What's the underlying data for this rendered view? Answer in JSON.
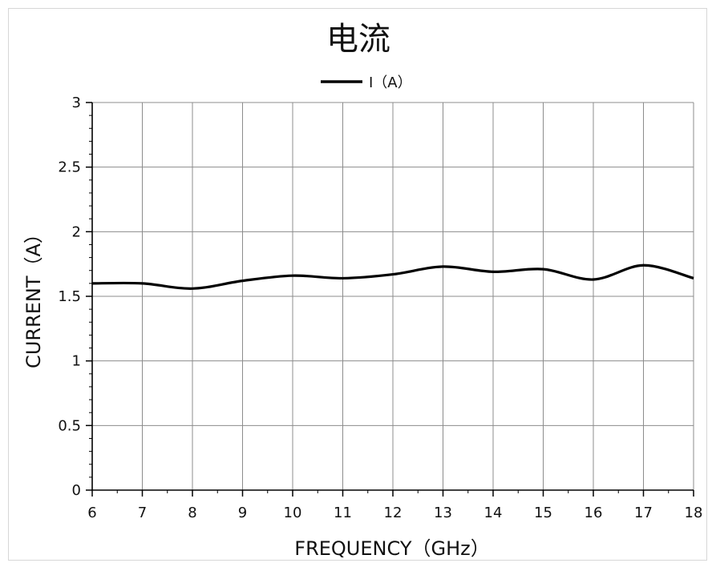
{
  "chart_data": {
    "type": "line",
    "title": "电流",
    "xlabel": "FREQUENCY（GHz）",
    "ylabel": "CURRENT（A）",
    "xlim": [
      6,
      18
    ],
    "ylim": [
      0,
      3
    ],
    "xticks": [
      "6",
      "7",
      "8",
      "9",
      "10",
      "11",
      "12",
      "13",
      "14",
      "15",
      "16",
      "17",
      "18"
    ],
    "yticks": [
      "0",
      "0.5",
      "1",
      "1.5",
      "2",
      "2.5",
      "3"
    ],
    "grid": true,
    "legend_position": "top-center",
    "series": [
      {
        "name": "I（A）",
        "color": "#000000",
        "x": [
          6,
          7,
          8,
          9,
          10,
          11,
          12,
          13,
          14,
          15,
          16,
          17,
          18
        ],
        "y": [
          1.6,
          1.6,
          1.56,
          1.62,
          1.66,
          1.64,
          1.67,
          1.73,
          1.69,
          1.71,
          1.63,
          1.74,
          1.64
        ]
      }
    ]
  }
}
